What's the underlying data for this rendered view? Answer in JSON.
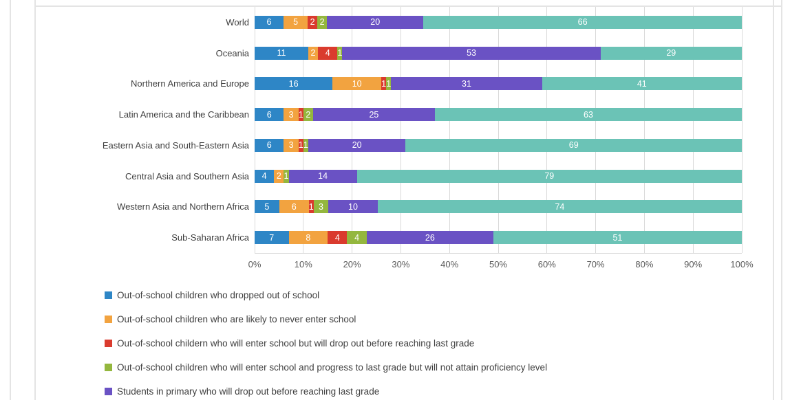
{
  "chart_data": {
    "type": "bar",
    "subtype": "horizontal-stacked-100",
    "title": "",
    "xlabel": "",
    "ylabel": "",
    "xlim": [
      0,
      100
    ],
    "grid": true,
    "legend_position": "bottom-left",
    "x_ticks": [
      "0%",
      "10%",
      "20%",
      "30%",
      "40%",
      "50%",
      "60%",
      "70%",
      "80%",
      "90%",
      "100%"
    ],
    "categories": [
      "World",
      "Oceania",
      "Northern America and Europe",
      "Latin America and the Caribbean",
      "Eastern Asia and South-Eastern Asia",
      "Central Asia and Southern Asia",
      "Western Asia and Northern Africa",
      "Sub-Saharan Africa"
    ],
    "series": [
      {
        "name": "Out-of-school children who dropped out of school",
        "color": "#2e86c6",
        "values": [
          6,
          11,
          16,
          6,
          6,
          4,
          5,
          7
        ]
      },
      {
        "name": "Out-of-school children who are likely to never enter school",
        "color": "#f2a340",
        "values": [
          5,
          2,
          10,
          3,
          3,
          2,
          6,
          8
        ]
      },
      {
        "name": "Out-of-school childern who will enter school but will drop out before reaching last grade",
        "color": "#da3b2e",
        "values": [
          2,
          4,
          1,
          1,
          1,
          0,
          1,
          4
        ]
      },
      {
        "name": "Out-of-school children who will enter school and progress to last grade but will not attain proficiency level",
        "color": "#94b73e",
        "values": [
          2,
          1,
          1,
          2,
          1,
          1,
          3,
          4
        ]
      },
      {
        "name": "Students in primary who will drop out before reaching last grade",
        "color": "#6a52c4",
        "values": [
          20,
          53,
          31,
          25,
          20,
          14,
          10,
          26
        ]
      },
      {
        "name": "",
        "color": "#6bc3b6",
        "values": [
          66,
          29,
          41,
          63,
          69,
          79,
          74,
          51
        ]
      }
    ]
  },
  "legend": {
    "visible_count": 5
  },
  "frame": {
    "line_color": "#e4e4e4",
    "gridline_color": "#d9d9d9"
  }
}
